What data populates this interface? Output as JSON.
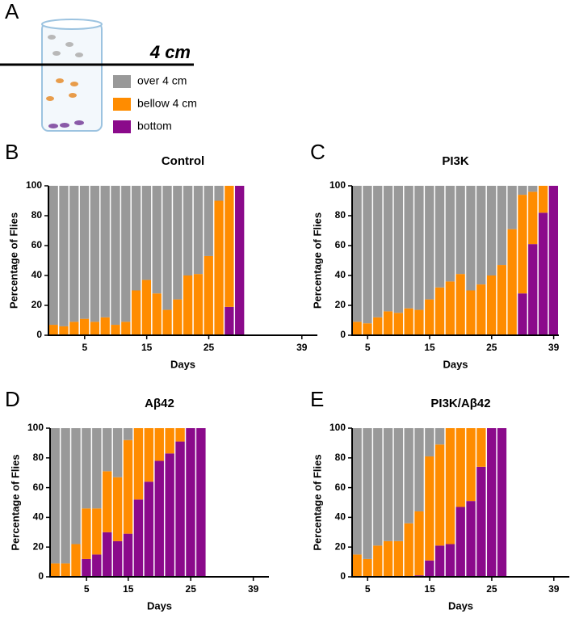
{
  "figure": {
    "panel_labels": [
      "A",
      "B",
      "C",
      "D",
      "E"
    ],
    "scale_label": "4 cm"
  },
  "chart_data": [
    {
      "type": "bar",
      "stacked": true,
      "title": "Control",
      "x_label": "Days",
      "y_label": "Percentage of Flies",
      "categories": [
        null,
        null,
        null,
        "5",
        null,
        null,
        null,
        null,
        null,
        "15",
        null,
        null,
        null,
        null,
        null,
        "25",
        null,
        null,
        null,
        null,
        null,
        null,
        null,
        null,
        "39",
        null
      ],
      "series": [
        {
          "name": "over 4 cm",
          "color": "#999999",
          "values": [
            93,
            94,
            91,
            89,
            91,
            88,
            93,
            91,
            70,
            63,
            72,
            83,
            76,
            60,
            59,
            47,
            10,
            0,
            0,
            null,
            null,
            null,
            null,
            null,
            null,
            null
          ]
        },
        {
          "name": "bellow 4 cm",
          "color": "#ff8c00",
          "values": [
            7,
            6,
            9,
            11,
            9,
            12,
            7,
            9,
            30,
            37,
            28,
            17,
            24,
            40,
            41,
            53,
            90,
            81,
            0,
            null,
            null,
            null,
            null,
            null,
            null,
            null
          ]
        },
        {
          "name": "bottom",
          "color": "#8b0a8b",
          "values": [
            0,
            0,
            0,
            0,
            0,
            0,
            0,
            0,
            0,
            0,
            0,
            0,
            0,
            0,
            0,
            0,
            0,
            19,
            100,
            null,
            null,
            null,
            null,
            null,
            null,
            null
          ]
        }
      ],
      "ylim": [
        0,
        100
      ],
      "yticks": [
        0,
        20,
        40,
        60,
        80,
        100
      ]
    },
    {
      "type": "bar",
      "stacked": true,
      "title": "PI3K",
      "x_label": "Days",
      "y_label": "Percentage of Flies",
      "categories": [
        null,
        "5",
        null,
        null,
        null,
        null,
        null,
        "15",
        null,
        null,
        null,
        null,
        null,
        "25",
        null,
        null,
        null,
        null,
        null,
        "39"
      ],
      "series": [
        {
          "name": "over 4 cm",
          "color": "#999999",
          "values": [
            91,
            92,
            88,
            84,
            85,
            82,
            83,
            76,
            68,
            64,
            59,
            70,
            66,
            60,
            53,
            29,
            6,
            4,
            0,
            0
          ]
        },
        {
          "name": "bellow 4 cm",
          "color": "#ff8c00",
          "values": [
            9,
            8,
            12,
            16,
            15,
            18,
            17,
            24,
            32,
            36,
            41,
            30,
            34,
            40,
            47,
            71,
            66,
            35,
            18,
            0
          ]
        },
        {
          "name": "bottom",
          "color": "#8b0a8b",
          "values": [
            0,
            0,
            0,
            0,
            0,
            0,
            0,
            0,
            0,
            0,
            0,
            0,
            0,
            0,
            0,
            0,
            28,
            61,
            82,
            100
          ]
        }
      ],
      "ylim": [
        0,
        100
      ],
      "yticks": [
        0,
        20,
        40,
        60,
        80,
        100
      ]
    },
    {
      "type": "bar",
      "stacked": true,
      "title": "Aβ42",
      "x_label": "Days",
      "y_label": "Percentage of Flies",
      "categories": [
        null,
        null,
        null,
        "5",
        null,
        null,
        null,
        "15",
        null,
        null,
        null,
        null,
        null,
        "25",
        null,
        null,
        null,
        null,
        null,
        "39",
        null
      ],
      "series": [
        {
          "name": "over 4 cm",
          "color": "#999999",
          "values": [
            91,
            91,
            78,
            54,
            54,
            29,
            33,
            8,
            0,
            0,
            0,
            0,
            0,
            0,
            0,
            null,
            null,
            null,
            null,
            null,
            null
          ]
        },
        {
          "name": "bellow 4 cm",
          "color": "#ff8c00",
          "values": [
            9,
            9,
            22,
            34,
            31,
            41,
            43,
            63,
            48,
            36,
            22,
            17,
            9,
            0,
            0,
            null,
            null,
            null,
            null,
            null,
            null
          ]
        },
        {
          "name": "bottom",
          "color": "#8b0a8b",
          "values": [
            0,
            0,
            0,
            12,
            15,
            30,
            24,
            29,
            52,
            64,
            78,
            83,
            91,
            100,
            100,
            null,
            null,
            null,
            null,
            null,
            null
          ]
        }
      ],
      "ylim": [
        0,
        100
      ],
      "yticks": [
        0,
        20,
        40,
        60,
        80,
        100
      ]
    },
    {
      "type": "bar",
      "stacked": true,
      "title": "PI3K/Aβ42",
      "x_label": "Days",
      "y_label": "Percentage of Flies",
      "categories": [
        null,
        "5",
        null,
        null,
        null,
        null,
        null,
        "15",
        null,
        null,
        null,
        null,
        null,
        "25",
        null,
        null,
        null,
        null,
        null,
        "39",
        null
      ],
      "series": [
        {
          "name": "over 4 cm",
          "color": "#999999",
          "values": [
            85,
            88,
            79,
            76,
            76,
            64,
            56,
            19,
            11,
            0,
            0,
            0,
            0,
            0,
            0,
            null,
            null,
            null,
            null,
            null,
            null
          ]
        },
        {
          "name": "bellow 4 cm",
          "color": "#ff8c00",
          "values": [
            15,
            12,
            21,
            24,
            24,
            36,
            43,
            70,
            68,
            78,
            53,
            49,
            26,
            0,
            0,
            null,
            null,
            null,
            null,
            null,
            null
          ]
        },
        {
          "name": "bottom",
          "color": "#8b0a8b",
          "values": [
            0,
            0,
            0,
            0,
            0,
            0,
            1,
            11,
            21,
            22,
            47,
            51,
            74,
            100,
            100,
            null,
            null,
            null,
            null,
            null,
            null
          ]
        }
      ],
      "ylim": [
        0,
        100
      ],
      "yticks": [
        0,
        20,
        40,
        60,
        80,
        100
      ]
    }
  ]
}
